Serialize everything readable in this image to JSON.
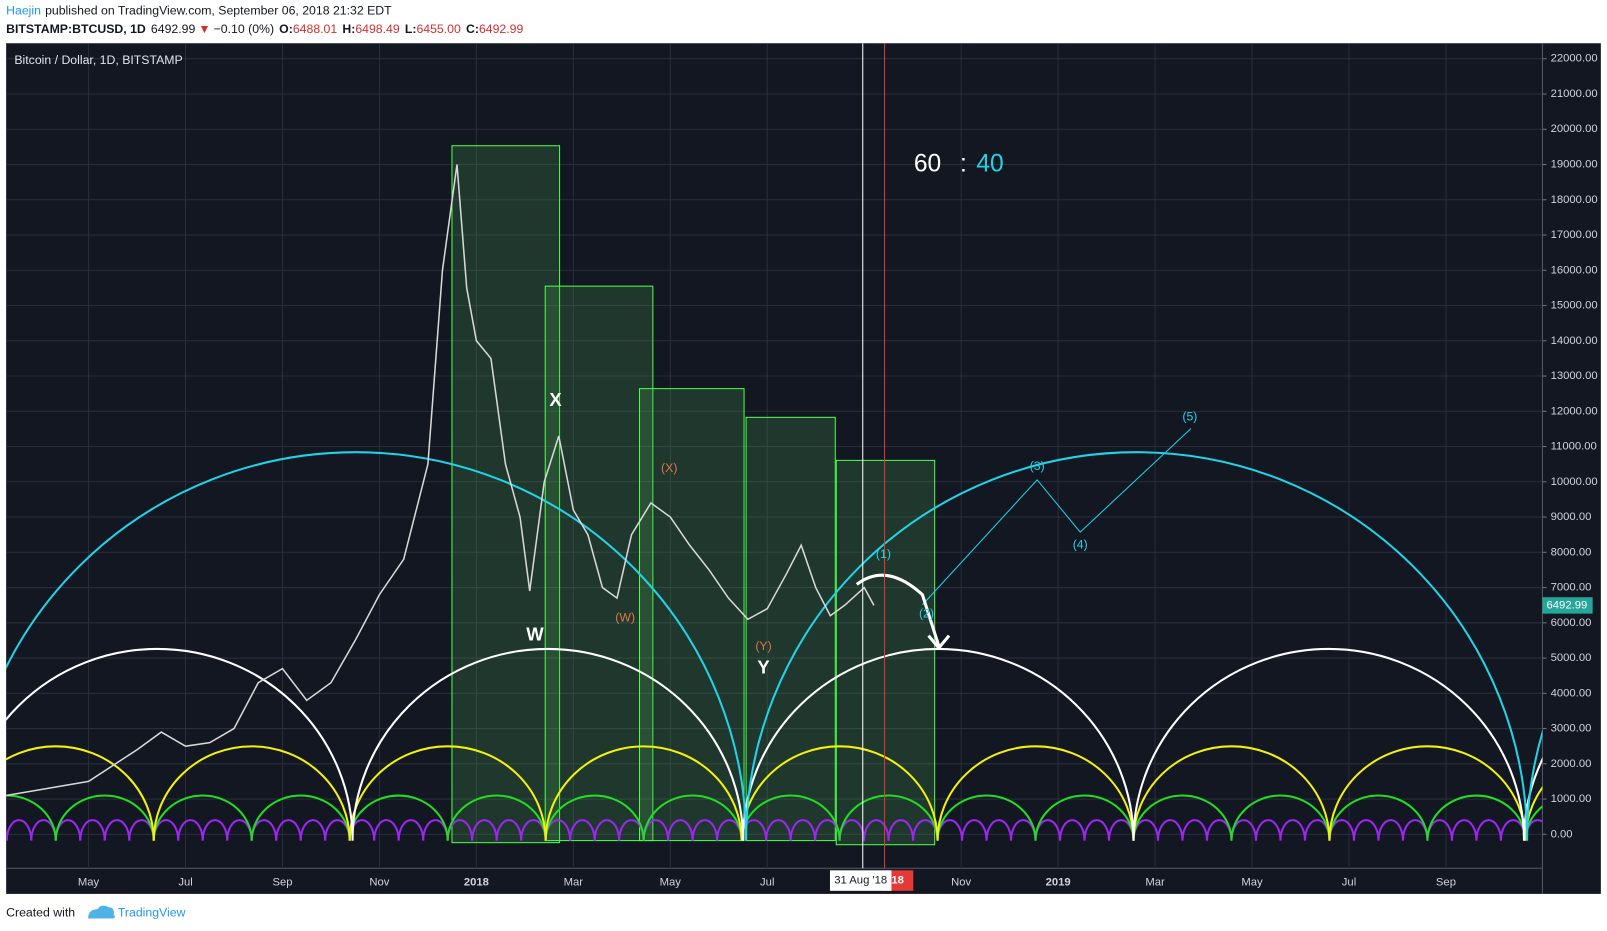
{
  "header": {
    "author": "Haejin",
    "published": "published on TradingView.com, September 06, 2018 21:32 EDT",
    "symbol": "BITSTAMP:BTCUSD, 1D",
    "last": "6492.99",
    "arrow": "▼",
    "change": "−0.10 (0%)",
    "open_label": "O:",
    "open": "6488.01",
    "high_label": "H:",
    "high": "6498.49",
    "low_label": "L:",
    "low": "6455.00",
    "close_label": "C:",
    "close": "6492.99"
  },
  "footer": {
    "created": "Created with",
    "brand": "TradingView"
  },
  "chart_data": {
    "type": "line",
    "title": "Bitcoin / Dollar, 1D, BITSTAMP",
    "color": "#d8d8d8",
    "x": [
      2.3,
      4,
      5,
      5.5,
      6,
      6.5,
      7,
      7.5,
      8,
      8.5,
      9,
      9.5,
      10,
      10.5,
      11,
      11.3,
      11.6,
      11.8,
      12,
      12.3,
      12.6,
      12.9,
      13.1,
      13.4,
      13.7,
      14,
      14.3,
      14.6,
      14.9,
      15.2,
      15.6,
      16,
      16.4,
      16.8,
      17.2,
      17.6,
      18,
      18.4,
      18.7,
      19,
      19.3,
      19.6,
      20,
      20.2
    ],
    "values": [
      1100,
      1500,
      2400,
      2900,
      2500,
      2600,
      3000,
      4300,
      4700,
      3800,
      4300,
      5500,
      6800,
      7800,
      10500,
      16000,
      19000,
      15500,
      14000,
      13500,
      10500,
      9000,
      6900,
      10000,
      11300,
      9200,
      8500,
      7000,
      6700,
      8500,
      9400,
      9000,
      8200,
      7500,
      6700,
      6100,
      6400,
      7400,
      8200,
      7000,
      6200,
      6500,
      7000,
      6493
    ],
    "last_price": 6492.99,
    "last_price_color": "#26a69a",
    "xlim": [
      2.3,
      33.99
    ],
    "ylim": [
      -1690,
      22440
    ],
    "xticks": [
      {
        "value": 4,
        "label": "May"
      },
      {
        "value": 6,
        "label": "Jul"
      },
      {
        "value": 8,
        "label": "Sep"
      },
      {
        "value": 10,
        "label": "Nov"
      },
      {
        "value": 12,
        "label": "2018"
      },
      {
        "value": 14,
        "label": "Mar"
      },
      {
        "value": 16,
        "label": "May"
      },
      {
        "value": 18,
        "label": "Jul"
      },
      {
        "value": 22,
        "label": "Nov"
      },
      {
        "value": 24,
        "label": "2019"
      },
      {
        "value": 26,
        "label": "Mar"
      },
      {
        "value": 28,
        "label": "May"
      },
      {
        "value": 30,
        "label": "Jul"
      },
      {
        "value": 32,
        "label": "Sep"
      }
    ],
    "yticks": [
      {
        "value": 0,
        "label": "0.00"
      },
      {
        "value": 1000,
        "label": "1000.00"
      },
      {
        "value": 2000,
        "label": "2000.00"
      },
      {
        "value": 3000,
        "label": "3000.00"
      },
      {
        "value": 4000,
        "label": "4000.00"
      },
      {
        "value": 5000,
        "label": "5000.00"
      },
      {
        "value": 6000,
        "label": "6000.00"
      },
      {
        "value": 7000,
        "label": "7000.00"
      },
      {
        "value": 8000,
        "label": "8000.00"
      },
      {
        "value": 9000,
        "label": "9000.00"
      },
      {
        "value": 10000,
        "label": "10000.00"
      },
      {
        "value": 11000,
        "label": "11000.00"
      },
      {
        "value": 12000,
        "label": "12000.00"
      },
      {
        "value": 13000,
        "label": "13000.00"
      },
      {
        "value": 14000,
        "label": "14000.00"
      },
      {
        "value": 15000,
        "label": "15000.00"
      },
      {
        "value": 16000,
        "label": "16000.00"
      },
      {
        "value": 17000,
        "label": "17000.00"
      },
      {
        "value": 18000,
        "label": "18000.00"
      },
      {
        "value": 19000,
        "label": "19000.00"
      },
      {
        "value": 20000,
        "label": "20000.00"
      },
      {
        "value": 21000,
        "label": "21000.00"
      },
      {
        "value": 22000,
        "label": "22000.00"
      }
    ],
    "grid": true,
    "crosshair": {
      "x": 19.97,
      "label": "31 Aug '18"
    },
    "marker": {
      "x": 20.42,
      "label": "'18"
    },
    "ratio": [
      "60",
      ":",
      "40"
    ],
    "annotations": [
      "W",
      "X",
      "Y",
      "(W)",
      "(X)",
      "(Y)",
      "(1)",
      "(2)",
      "(3)",
      "(4)",
      "(5)"
    ]
  }
}
